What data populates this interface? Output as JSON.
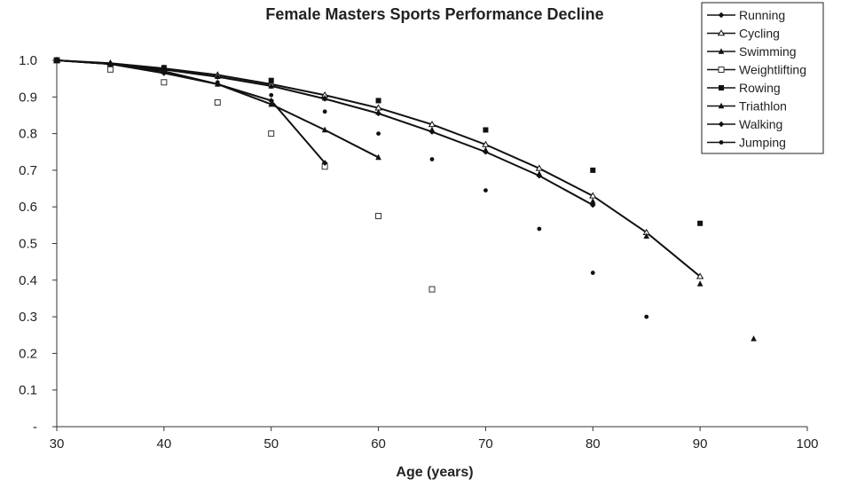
{
  "chart_data": {
    "type": "line",
    "title": "Female Masters Sports Performance Decline",
    "xlabel": "Age (years)",
    "ylabel": "",
    "xlim": [
      30,
      100
    ],
    "ylim": [
      0,
      1.0
    ],
    "x_ticks": [
      "30",
      "40",
      "50",
      "60",
      "70",
      "80",
      "90",
      "100"
    ],
    "y_ticks": [
      "-",
      "0.1",
      "0.2",
      "0.3",
      "0.4",
      "0.5",
      "0.6",
      "0.7",
      "0.8",
      "0.9",
      "1.0"
    ],
    "grid": false,
    "legend": "top-right",
    "series": [
      {
        "name": "Running",
        "marker": "diamond",
        "line": true,
        "x": [
          30,
          35,
          40,
          45,
          50,
          55,
          60,
          65,
          70,
          75,
          80
        ],
        "y": [
          1.0,
          0.99,
          0.975,
          0.955,
          0.93,
          0.895,
          0.855,
          0.805,
          0.75,
          0.685,
          0.605
        ]
      },
      {
        "name": "Cycling",
        "marker": "triangle-open",
        "line": true,
        "x": [
          30,
          35,
          40,
          45,
          50,
          55,
          60,
          65,
          70,
          75,
          80,
          85,
          90
        ],
        "y": [
          1.0,
          0.992,
          0.978,
          0.96,
          0.935,
          0.905,
          0.87,
          0.825,
          0.77,
          0.705,
          0.63,
          0.53,
          0.41
        ]
      },
      {
        "name": "Swimming",
        "marker": "triangle",
        "line": false,
        "x": [
          30,
          35,
          40,
          45,
          50,
          55,
          60,
          65,
          70,
          75,
          80,
          85,
          90,
          95
        ],
        "y": [
          1.0,
          0.99,
          0.976,
          0.956,
          0.93,
          0.897,
          0.858,
          0.81,
          0.755,
          0.69,
          0.615,
          0.52,
          0.39,
          0.24
        ]
      },
      {
        "name": "Weightlifting",
        "marker": "square-open",
        "line": false,
        "x": [
          30,
          35,
          40,
          45,
          50,
          55,
          60,
          65
        ],
        "y": [
          1.0,
          0.975,
          0.94,
          0.885,
          0.8,
          0.71,
          0.575,
          0.375
        ]
      },
      {
        "name": "Rowing",
        "marker": "square",
        "line": false,
        "x": [
          30,
          40,
          50,
          60,
          70,
          80,
          90
        ],
        "y": [
          1.0,
          0.98,
          0.945,
          0.89,
          0.81,
          0.7,
          0.555
        ]
      },
      {
        "name": "Triathlon",
        "marker": "triangle",
        "line": true,
        "x": [
          30,
          35,
          40,
          45,
          50,
          55,
          60
        ],
        "y": [
          1.0,
          0.99,
          0.97,
          0.935,
          0.88,
          0.81,
          0.735
        ]
      },
      {
        "name": "Walking",
        "marker": "diamond",
        "line": true,
        "x": [
          30,
          35,
          40,
          45,
          50,
          55
        ],
        "y": [
          1.0,
          0.99,
          0.965,
          0.935,
          0.89,
          0.72
        ]
      },
      {
        "name": "Jumping",
        "marker": "dot",
        "line": false,
        "x": [
          30,
          35,
          40,
          45,
          50,
          55,
          60,
          65,
          70,
          75,
          80,
          85
        ],
        "y": [
          1.0,
          0.99,
          0.97,
          0.94,
          0.905,
          0.86,
          0.8,
          0.73,
          0.645,
          0.54,
          0.42,
          0.3
        ]
      }
    ]
  }
}
